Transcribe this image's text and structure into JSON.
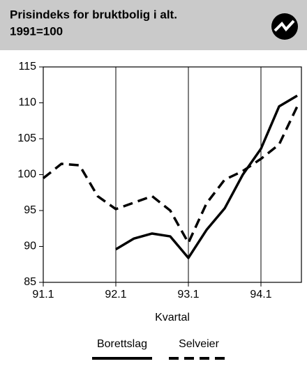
{
  "chart_data": {
    "type": "line",
    "title": "Prisindeks for bruktbolig i alt.",
    "subtitle": "1991=100",
    "x_label": "Kvartal",
    "categories": [
      "91.1",
      null,
      null,
      null,
      "92.1",
      null,
      null,
      null,
      "93.1",
      null,
      null,
      null,
      "94.1",
      null,
      null
    ],
    "series": [
      {
        "name": "Borettslag",
        "color": "#000000",
        "dash": "solid",
        "values": [
          null,
          null,
          null,
          null,
          89.6,
          91.1,
          91.8,
          91.4,
          88.4,
          92.3,
          95.3,
          100,
          103.6,
          109.5,
          111
        ]
      },
      {
        "name": "Selveier",
        "color": "#000000",
        "dash": "dashed",
        "values": [
          99.5,
          101.5,
          101.3,
          97,
          95.2,
          96.1,
          97,
          95,
          90.5,
          96,
          99.3,
          100.5,
          102.2,
          104.2,
          109.5
        ]
      }
    ],
    "ylim": [
      85,
      115
    ],
    "yticks": [
      85,
      90,
      95,
      100,
      105,
      110,
      115
    ],
    "grid": true
  }
}
